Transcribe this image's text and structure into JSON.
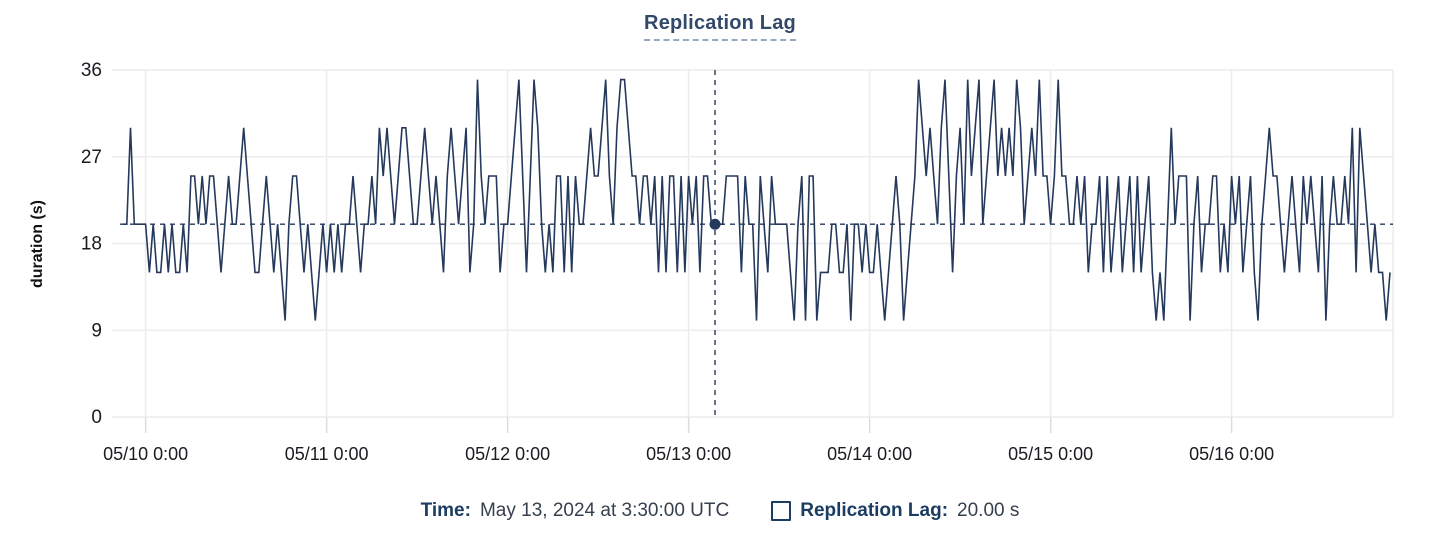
{
  "legend": {
    "title": "Replication Lag"
  },
  "colors": {
    "series": "#24395b",
    "title": "#33496b",
    "grid": "#ececec",
    "crosshair": "#24395b",
    "axis_text": "#1a1c21",
    "background": "#ffffff"
  },
  "tooltip": {
    "time_label": "Time:",
    "time_value": "May 13, 2024 at 3:30:00 UTC",
    "series_label": "Replication Lag:",
    "series_value": "20.00 s"
  },
  "chart_data": {
    "type": "line",
    "title": "Replication Lag",
    "xlabel": "",
    "ylabel": "duration (s)",
    "ylim": [
      0,
      36
    ],
    "y_ticks": [
      0,
      9,
      18,
      27,
      36
    ],
    "x_tick_labels": [
      "05/10 0:00",
      "05/11 0:00",
      "05/12 0:00",
      "05/13 0:00",
      "05/14 0:00",
      "05/15 0:00",
      "05/16 0:00"
    ],
    "x_tick_indices": [
      6,
      54,
      102,
      150,
      198,
      246,
      294
    ],
    "x_start": "05/09 21:00 UTC",
    "x_step_minutes": 30,
    "grid": true,
    "legend_position": "top",
    "selected_point": {
      "index": 157,
      "time": "May 13, 2024 at 3:30:00 UTC",
      "value": 20,
      "display_value": "20.00 s"
    },
    "series": [
      {
        "name": "Replication Lag",
        "color": "#24395b",
        "values": [
          20,
          20,
          30,
          20,
          20,
          20,
          20,
          15,
          20,
          15,
          15,
          20,
          15,
          20,
          15,
          15,
          20,
          15,
          25,
          25,
          20,
          25,
          20,
          25,
          25,
          20,
          15,
          20,
          25,
          20,
          20,
          25,
          30,
          25,
          20,
          15,
          15,
          20,
          25,
          20,
          15,
          20,
          15,
          10,
          20,
          25,
          25,
          20,
          15,
          20,
          15,
          10,
          15,
          20,
          15,
          20,
          15,
          20,
          15,
          20,
          20,
          25,
          20,
          15,
          20,
          20,
          25,
          20,
          30,
          25,
          30,
          25,
          20,
          25,
          30,
          30,
          25,
          20,
          20,
          25,
          30,
          25,
          20,
          25,
          20,
          15,
          25,
          30,
          25,
          20,
          25,
          30,
          15,
          20,
          35,
          25,
          20,
          25,
          25,
          25,
          15,
          20,
          20,
          25,
          30,
          35,
          25,
          15,
          25,
          35,
          30,
          20,
          15,
          20,
          15,
          25,
          25,
          15,
          25,
          15,
          25,
          20,
          20,
          25,
          30,
          25,
          25,
          30,
          35,
          25,
          20,
          30,
          35,
          35,
          30,
          25,
          25,
          20,
          25,
          25,
          20,
          25,
          15,
          25,
          15,
          25,
          25,
          15,
          25,
          15,
          25,
          20,
          25,
          15,
          25,
          25,
          20,
          20,
          20,
          20,
          25,
          25,
          25,
          25,
          15,
          25,
          20,
          20,
          10,
          25,
          20,
          15,
          25,
          20,
          20,
          20,
          20,
          15,
          10,
          20,
          25,
          10,
          25,
          25,
          10,
          15,
          15,
          15,
          20,
          20,
          15,
          15,
          20,
          10,
          20,
          20,
          15,
          20,
          15,
          15,
          20,
          15,
          10,
          15,
          20,
          25,
          20,
          10,
          15,
          20,
          25,
          35,
          30,
          25,
          30,
          25,
          20,
          30,
          35,
          25,
          15,
          25,
          30,
          20,
          35,
          25,
          30,
          35,
          20,
          25,
          30,
          35,
          25,
          30,
          25,
          30,
          25,
          35,
          30,
          20,
          25,
          30,
          25,
          35,
          25,
          25,
          20,
          25,
          35,
          25,
          25,
          20,
          20,
          25,
          20,
          25,
          15,
          20,
          20,
          25,
          15,
          25,
          15,
          20,
          25,
          15,
          20,
          25,
          15,
          25,
          15,
          20,
          25,
          15,
          10,
          15,
          10,
          20,
          30,
          20,
          25,
          25,
          25,
          10,
          20,
          25,
          15,
          20,
          20,
          25,
          25,
          15,
          20,
          15,
          25,
          20,
          25,
          15,
          20,
          25,
          15,
          10,
          20,
          25,
          30,
          25,
          25,
          20,
          15,
          20,
          25,
          20,
          15,
          25,
          20,
          25,
          20,
          15,
          25,
          10,
          20,
          25,
          20,
          20,
          25,
          20,
          30,
          15,
          30,
          25,
          20,
          15,
          20,
          15,
          15,
          10,
          15
        ]
      }
    ]
  }
}
